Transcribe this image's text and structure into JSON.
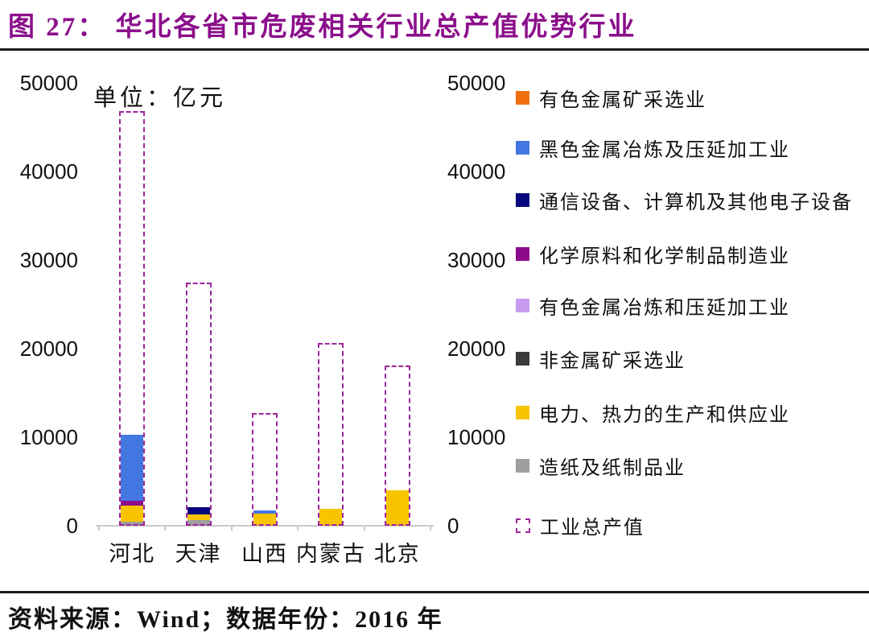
{
  "header": {
    "title": "图 27： 华北各省市危废相关行业总产值优势行业"
  },
  "footer": {
    "source": "资料来源：Wind；数据年份：2016 年"
  },
  "chart_data": {
    "type": "bar",
    "stacked": true,
    "title": "华北各省市危废相关行业总产值优势行业",
    "unit_label": "单位：亿元",
    "categories": [
      "河北",
      "天津",
      "山西",
      "内蒙古",
      "北京"
    ],
    "y_axis": {
      "ticks": [
        50000,
        40000,
        30000,
        20000,
        10000,
        0
      ],
      "range": [
        0,
        50000
      ],
      "sides": "both",
      "grid": false
    },
    "legend_position": "right",
    "series": [
      {
        "name": "有色金属矿采选业",
        "color": "#F07010",
        "values": [
          0,
          0,
          0,
          0,
          0
        ]
      },
      {
        "name": "黑色金属冶炼及压延加工业",
        "color": "#4577E3",
        "values": [
          7450,
          0,
          350,
          0,
          0
        ]
      },
      {
        "name": "通信设备、计算机及其他电子设备",
        "color": "#06067E",
        "values": [
          0,
          850,
          0,
          0,
          0
        ]
      },
      {
        "name": "化学原料和化学制品制造业",
        "color": "#8B0A8B",
        "values": [
          550,
          0,
          0,
          0,
          0
        ]
      },
      {
        "name": "有色金属冶炼和压延加工业",
        "color": "#C79CF0",
        "values": [
          0,
          0,
          0,
          0,
          0
        ]
      },
      {
        "name": "非金属矿采选业",
        "color": "#3A3A3A",
        "values": [
          0,
          0,
          0,
          0,
          0
        ]
      },
      {
        "name": "电力、热力的生产和供应业",
        "color": "#F8C400",
        "values": [
          1800,
          600,
          1400,
          1900,
          4000
        ]
      },
      {
        "name": "造纸及纸制品业",
        "color": "#9E9E9E",
        "values": [
          450,
          650,
          0,
          0,
          0
        ]
      }
    ],
    "total_series": {
      "name": "工业总产值",
      "style": "dashed-outline",
      "color": "#9B269B",
      "values": [
        46800,
        27450,
        12700,
        20600,
        18100
      ]
    }
  }
}
